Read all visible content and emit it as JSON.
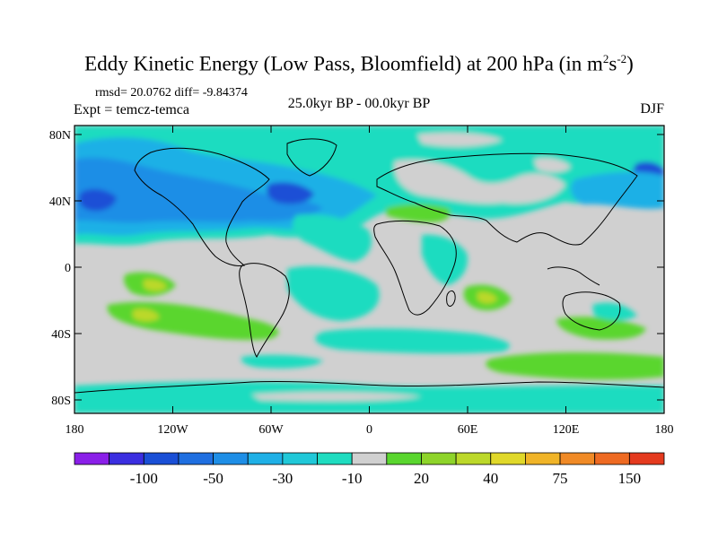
{
  "title_main": "Eddy Kinetic Energy (Low Pass, Bloomfield) at 200 hPa (in m",
  "title_sup1": "2",
  "title_mid": "s",
  "title_sup2": "-2",
  "title_end": ")",
  "stats": "rmsd= 20.0762 diff= -9.84374",
  "expt": "Expt = temcz-temca",
  "period": "25.0kyr BP - 00.0kyr BP",
  "season": "DJF",
  "lat_ticks": [
    "80N",
    "40N",
    "0",
    "40S",
    "80S"
  ],
  "lon_ticks": [
    "180",
    "120W",
    "60W",
    "0",
    "60E",
    "120E",
    "180"
  ],
  "colorbar": {
    "colors": [
      "#8a1fe8",
      "#3b2ee0",
      "#1a4fd6",
      "#1f6fe0",
      "#1e8ee6",
      "#1fb0e6",
      "#20c8d8",
      "#1fdcc0",
      "#d0d0d0",
      "#5ad62e",
      "#8ed42a",
      "#bcd82a",
      "#e0d82a",
      "#f0b428",
      "#f08a26",
      "#ee6a22",
      "#e43a1e"
    ],
    "labels": [
      "-100",
      "-50",
      "-30",
      "-10",
      "20",
      "40",
      "75",
      "150"
    ]
  },
  "map_colors": {
    "neutral": "#d0d0d0",
    "cyan_light": "#1fdcc0",
    "cyan": "#20c8d8",
    "blue_light": "#1fb0e6",
    "blue": "#1e8ee6",
    "blue_deep": "#1a4fd6",
    "green": "#5ad62e",
    "yellowgreen": "#bcd82a"
  }
}
